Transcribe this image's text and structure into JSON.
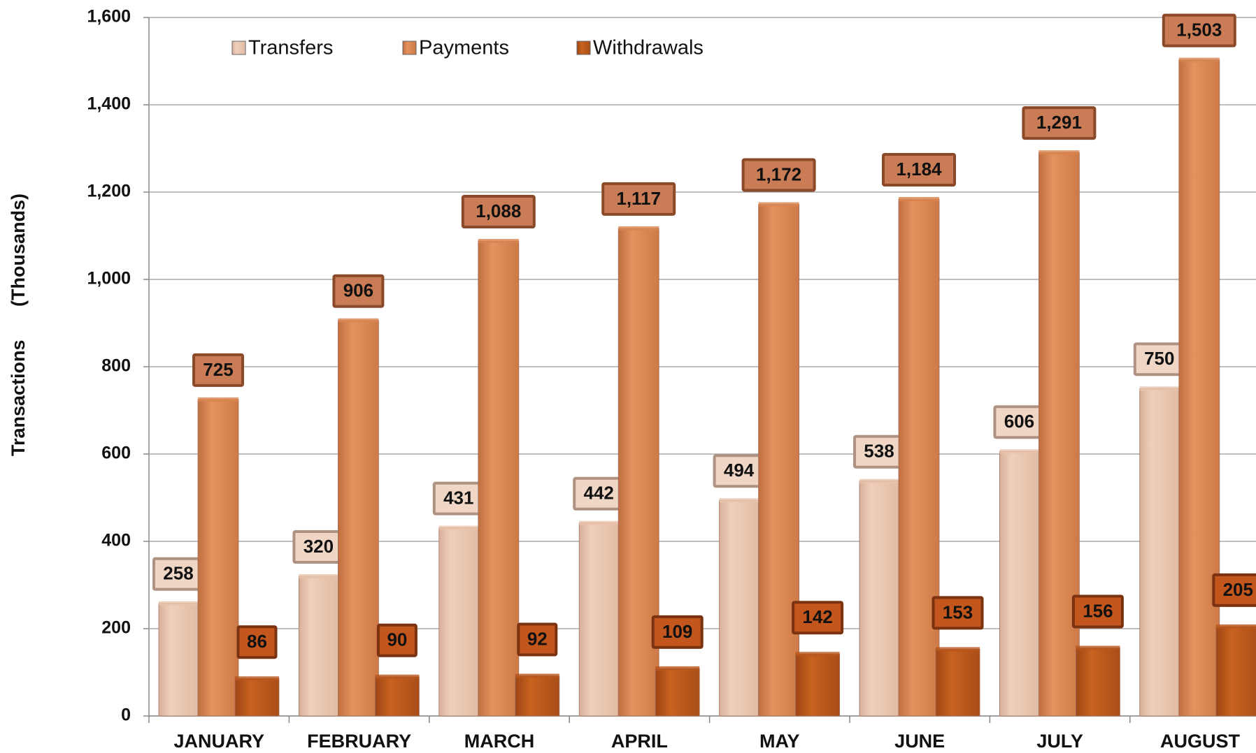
{
  "chart_data": {
    "type": "bar",
    "y_label": "Transactions (Thousands)",
    "categories": [
      "JANUARY",
      "FEBRUARY",
      "MARCH",
      "APRIL",
      "MAY",
      "JUNE",
      "JULY",
      "AUGUST"
    ],
    "series": [
      {
        "name": "Transfers",
        "color": "#e8c3ab",
        "values": [
          258,
          320,
          431,
          442,
          494,
          538,
          606,
          750
        ]
      },
      {
        "name": "Payments",
        "color": "#d98550",
        "values": [
          725,
          906,
          1088,
          1117,
          1172,
          1184,
          1291,
          1503
        ],
        "value_labels": [
          "725",
          "906",
          "1,088",
          "1,117",
          "1,172",
          "1,184",
          "1,291",
          "1,503"
        ]
      },
      {
        "name": "Withdrawals",
        "color": "#b8561d",
        "values": [
          86,
          90,
          92,
          109,
          142,
          153,
          156,
          205
        ]
      }
    ],
    "ylim": [
      0,
      1600
    ],
    "yticks": [
      0,
      200,
      400,
      600,
      800,
      {
        "value": 1000,
        "label": "1,000"
      },
      {
        "value": 1200,
        "label": "1,200"
      },
      {
        "value": 1400,
        "label": "1,400"
      },
      {
        "value": 1600,
        "label": "1,600"
      }
    ],
    "grid": true
  }
}
